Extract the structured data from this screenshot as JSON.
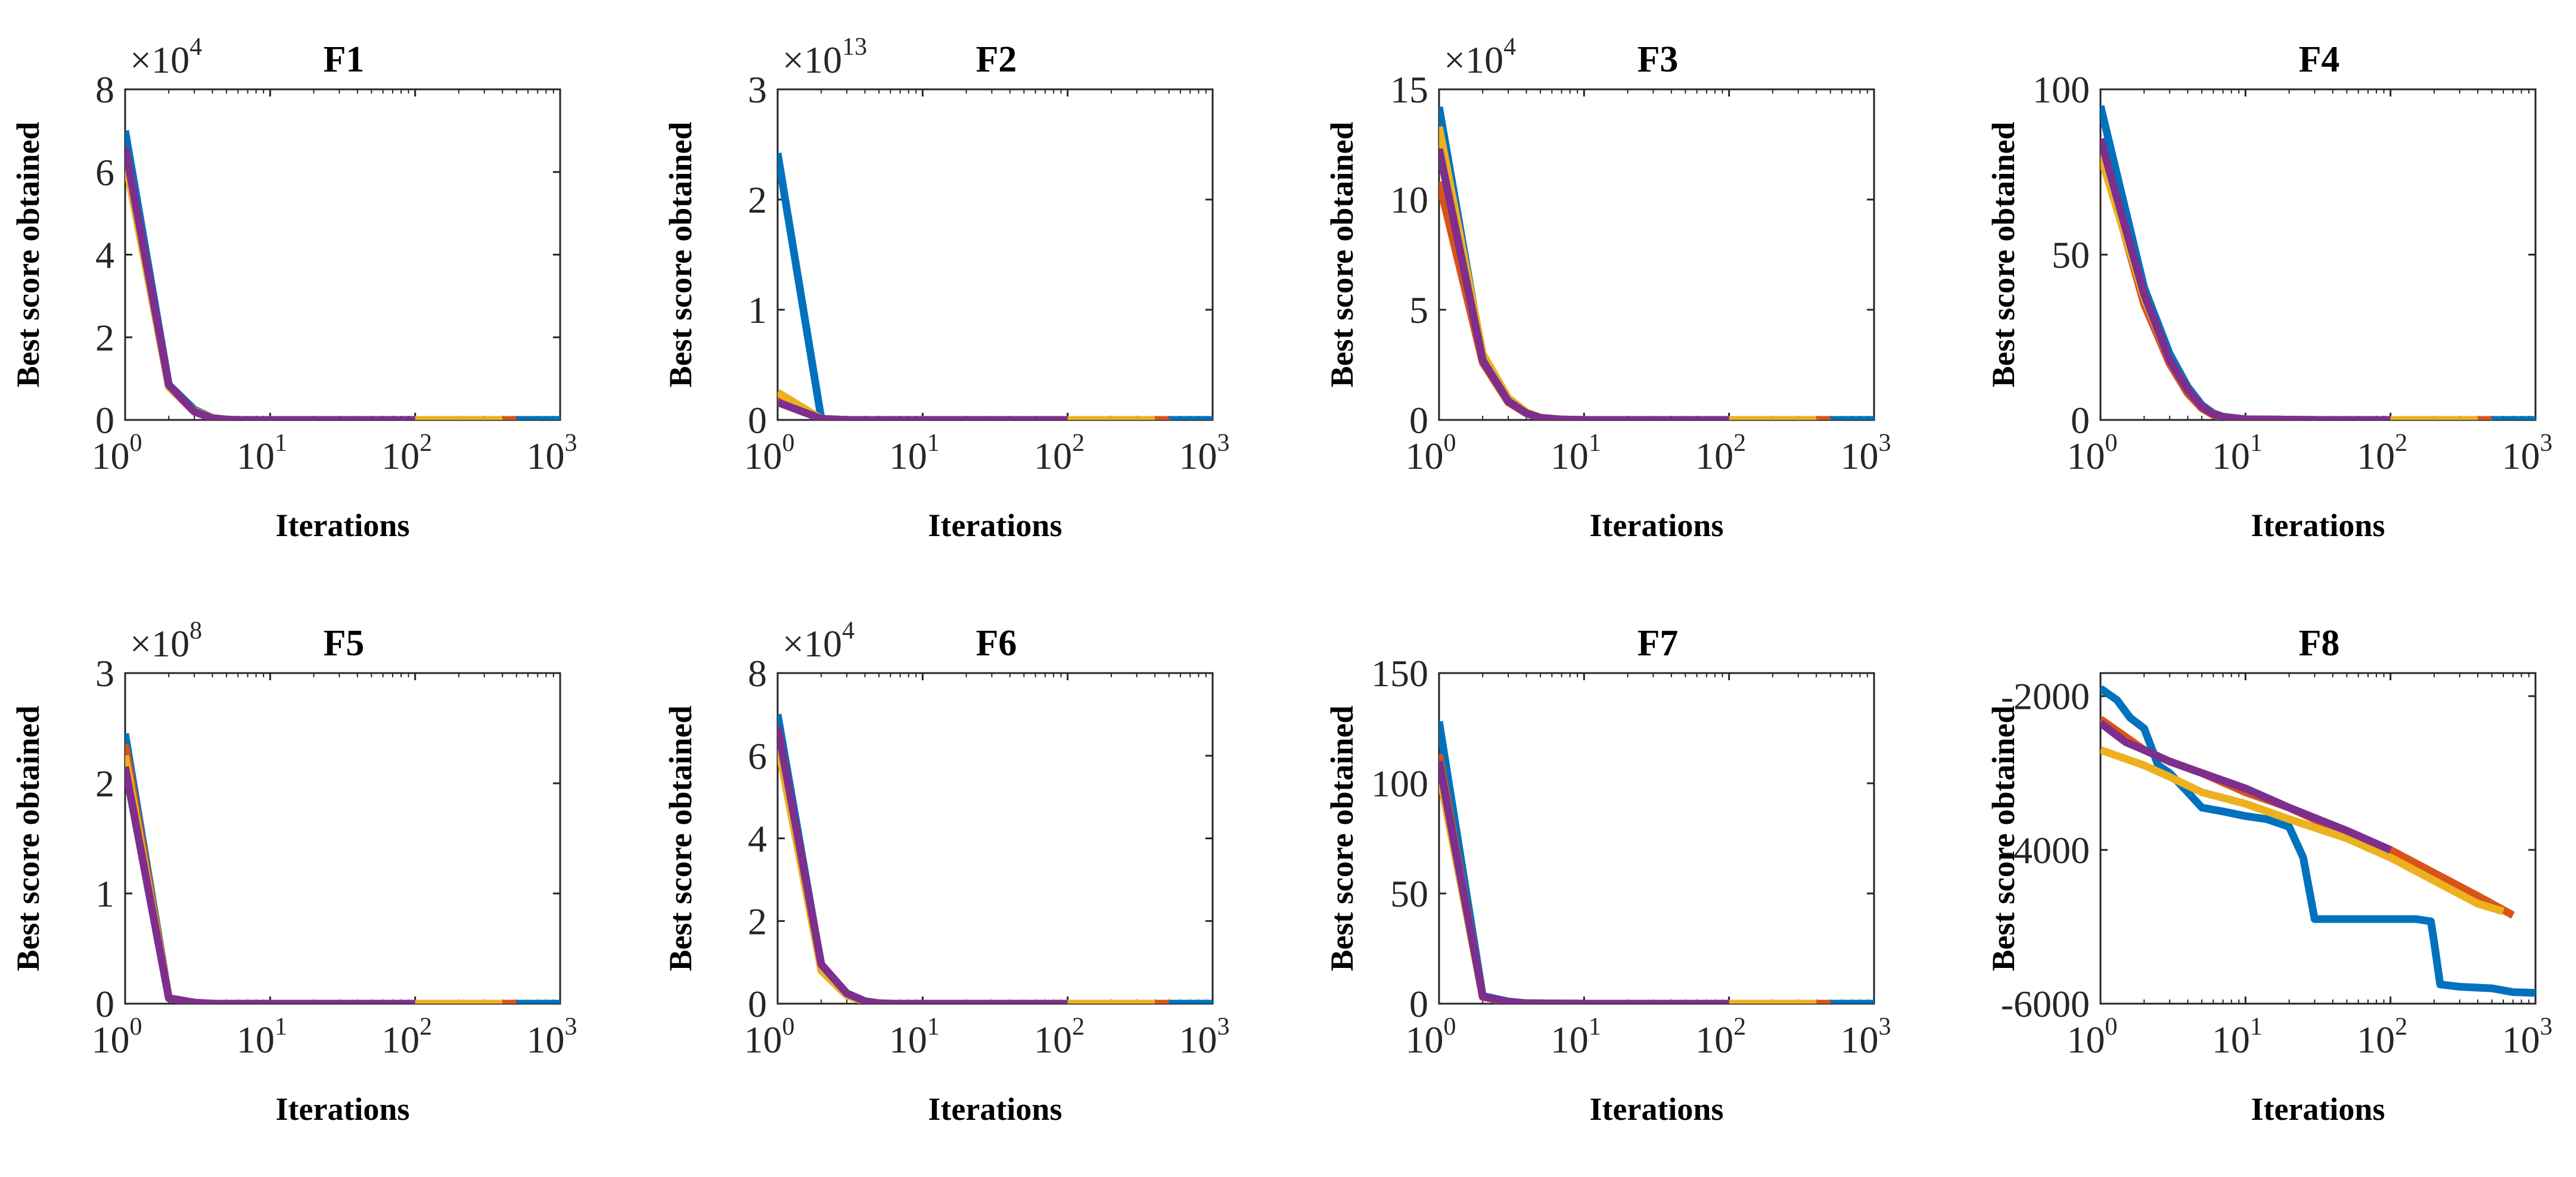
{
  "colors": [
    "#0072BD",
    "#D95319",
    "#EDB120",
    "#7E2F8E"
  ],
  "chart_data": [
    {
      "type": "line",
      "title": "F1",
      "xlabel": "Iterations",
      "ylabel": "Best score obtained",
      "xscale": "log",
      "xlim": [
        1,
        1000
      ],
      "ylim": [
        0,
        8
      ],
      "multiplier": "×10",
      "multiplier_exp": "4",
      "xticks": [
        1,
        10,
        100,
        1000
      ],
      "xtick_base": "10",
      "xtick_exps": [
        "0",
        "1",
        "2",
        "3"
      ],
      "yticks": [
        0,
        2,
        4,
        6,
        8
      ],
      "ytick_labels": [
        "0",
        "2",
        "4",
        "6",
        "8"
      ],
      "series": [
        {
          "x": [
            1,
            2,
            3,
            4,
            5,
            6,
            10,
            30,
            100,
            500,
            1000
          ],
          "y": [
            7.0,
            0.85,
            0.25,
            0.05,
            0.01,
            0,
            0,
            0,
            0,
            0,
            0
          ]
        },
        {
          "x": [
            1,
            2,
            3,
            4,
            5,
            6,
            10,
            30,
            100,
            500
          ],
          "y": [
            6.6,
            0.8,
            0.2,
            0.04,
            0.01,
            0,
            0,
            0,
            0,
            0
          ]
        },
        {
          "x": [
            1,
            2,
            3,
            4,
            5,
            6,
            10,
            30,
            100,
            400
          ],
          "y": [
            6.3,
            0.8,
            0.22,
            0.05,
            0.01,
            0,
            0,
            0,
            0,
            0
          ]
        },
        {
          "x": [
            1,
            2,
            3,
            4,
            5,
            6,
            10,
            30,
            100
          ],
          "y": [
            6.6,
            0.85,
            0.2,
            0.04,
            0.01,
            0,
            0,
            0,
            0
          ]
        }
      ]
    },
    {
      "type": "line",
      "title": "F2",
      "xlabel": "Iterations",
      "ylabel": "Best score obtained",
      "xscale": "log",
      "xlim": [
        1,
        1000
      ],
      "ylim": [
        0,
        3
      ],
      "multiplier": "×10",
      "multiplier_exp": "13",
      "xticks": [
        1,
        10,
        100,
        1000
      ],
      "xtick_base": "10",
      "xtick_exps": [
        "0",
        "1",
        "2",
        "3"
      ],
      "yticks": [
        0,
        1,
        2,
        3
      ],
      "ytick_labels": [
        "0",
        "1",
        "2",
        "3"
      ],
      "series": [
        {
          "x": [
            1,
            2,
            3,
            10,
            100,
            500,
            1000
          ],
          "y": [
            2.42,
            0.01,
            0,
            0,
            0,
            0,
            0
          ]
        },
        {
          "x": [
            1,
            2,
            3,
            10,
            100,
            500
          ],
          "y": [
            0.2,
            0.01,
            0,
            0,
            0,
            0
          ]
        },
        {
          "x": [
            1,
            2,
            3,
            10,
            100,
            400
          ],
          "y": [
            0.25,
            0.01,
            0,
            0,
            0,
            0
          ]
        },
        {
          "x": [
            1,
            2,
            3,
            10,
            100
          ],
          "y": [
            0.16,
            0.01,
            0,
            0,
            0
          ]
        }
      ]
    },
    {
      "type": "line",
      "title": "F3",
      "xlabel": "Iterations",
      "ylabel": "Best score obtained",
      "xscale": "log",
      "xlim": [
        1,
        1000
      ],
      "ylim": [
        0,
        15
      ],
      "multiplier": "×10",
      "multiplier_exp": "4",
      "xticks": [
        1,
        10,
        100,
        1000
      ],
      "xtick_base": "10",
      "xtick_exps": [
        "0",
        "1",
        "2",
        "3"
      ],
      "yticks": [
        0,
        5,
        10,
        15
      ],
      "ytick_labels": [
        "0",
        "5",
        "10",
        "15"
      ],
      "series": [
        {
          "x": [
            1,
            2,
            3,
            4,
            5,
            7,
            10,
            30,
            100,
            500,
            1000
          ],
          "y": [
            14.2,
            2.8,
            0.9,
            0.35,
            0.1,
            0.02,
            0,
            0,
            0,
            0,
            0
          ]
        },
        {
          "x": [
            1,
            2,
            3,
            4,
            5,
            7,
            10,
            30,
            100,
            500
          ],
          "y": [
            10.8,
            2.6,
            0.8,
            0.3,
            0.1,
            0.02,
            0,
            0,
            0,
            0
          ]
        },
        {
          "x": [
            1,
            2,
            3,
            4,
            5,
            7,
            10,
            30,
            100,
            400
          ],
          "y": [
            13.3,
            3.0,
            1.0,
            0.35,
            0.1,
            0.02,
            0,
            0,
            0,
            0
          ]
        },
        {
          "x": [
            1,
            2,
            3,
            4,
            5,
            7,
            10,
            30,
            100
          ],
          "y": [
            12.3,
            2.7,
            0.85,
            0.3,
            0.1,
            0.02,
            0,
            0,
            0
          ]
        }
      ]
    },
    {
      "type": "line",
      "title": "F4",
      "xlabel": "Iterations",
      "ylabel": "Best score obtained",
      "xscale": "log",
      "xlim": [
        1,
        1000
      ],
      "ylim": [
        0,
        100
      ],
      "multiplier": "",
      "multiplier_exp": "",
      "xticks": [
        1,
        10,
        100,
        1000
      ],
      "xtick_base": "10",
      "xtick_exps": [
        "0",
        "1",
        "2",
        "3"
      ],
      "yticks": [
        0,
        50,
        100
      ],
      "ytick_labels": [
        "0",
        "50",
        "100"
      ],
      "series": [
        {
          "x": [
            1,
            2,
            3,
            4,
            5,
            6,
            7,
            10,
            30,
            100,
            500,
            1000
          ],
          "y": [
            95,
            40,
            20,
            10,
            4.5,
            2,
            1,
            0.2,
            0,
            0,
            0,
            0
          ]
        },
        {
          "x": [
            1,
            2,
            3,
            4,
            5,
            6,
            7,
            10,
            30,
            100,
            500
          ],
          "y": [
            82,
            35,
            17,
            8,
            3.5,
            1.5,
            0.8,
            0.2,
            0,
            0,
            0
          ]
        },
        {
          "x": [
            1,
            2,
            3,
            4,
            5,
            6,
            7,
            10,
            30,
            100,
            400
          ],
          "y": [
            80,
            37,
            18,
            9,
            4,
            1.8,
            0.9,
            0.2,
            0,
            0,
            0
          ]
        },
        {
          "x": [
            1,
            2,
            3,
            4,
            5,
            6,
            7,
            10,
            30,
            100
          ],
          "y": [
            85,
            38,
            18,
            9,
            4,
            1.8,
            0.9,
            0.2,
            0,
            0
          ]
        }
      ]
    },
    {
      "type": "line",
      "title": "F5",
      "xlabel": "Iterations",
      "ylabel": "Best score obtained",
      "xscale": "log",
      "xlim": [
        1,
        1000
      ],
      "ylim": [
        0,
        3
      ],
      "multiplier": "×10",
      "multiplier_exp": "8",
      "xticks": [
        1,
        10,
        100,
        1000
      ],
      "xtick_base": "10",
      "xtick_exps": [
        "0",
        "1",
        "2",
        "3"
      ],
      "yticks": [
        0,
        1,
        2,
        3
      ],
      "ytick_labels": [
        "0",
        "1",
        "2",
        "3"
      ],
      "series": [
        {
          "x": [
            1,
            2,
            3,
            4,
            10,
            100,
            500,
            1000
          ],
          "y": [
            2.45,
            0.05,
            0.01,
            0,
            0,
            0,
            0,
            0
          ]
        },
        {
          "x": [
            1,
            2,
            3,
            4,
            10,
            100,
            500
          ],
          "y": [
            2.35,
            0.05,
            0.01,
            0,
            0,
            0,
            0
          ]
        },
        {
          "x": [
            1,
            2,
            3,
            4,
            10,
            100,
            400
          ],
          "y": [
            2.25,
            0.05,
            0.01,
            0,
            0,
            0,
            0
          ]
        },
        {
          "x": [
            1,
            2,
            3,
            4,
            10,
            100
          ],
          "y": [
            2.15,
            0.05,
            0.01,
            0,
            0,
            0
          ]
        }
      ]
    },
    {
      "type": "line",
      "title": "F6",
      "xlabel": "Iterations",
      "ylabel": "Best score obtained",
      "xscale": "log",
      "xlim": [
        1,
        1000
      ],
      "ylim": [
        0,
        8
      ],
      "multiplier": "×10",
      "multiplier_exp": "4",
      "xticks": [
        1,
        10,
        100,
        1000
      ],
      "xtick_base": "10",
      "xtick_exps": [
        "0",
        "1",
        "2",
        "3"
      ],
      "yticks": [
        0,
        2,
        4,
        6,
        8
      ],
      "ytick_labels": [
        "0",
        "2",
        "4",
        "6",
        "8"
      ],
      "series": [
        {
          "x": [
            1,
            2,
            3,
            4,
            5,
            6,
            10,
            30,
            100,
            500,
            1000
          ],
          "y": [
            7.0,
            0.9,
            0.25,
            0.06,
            0.01,
            0,
            0,
            0,
            0,
            0,
            0
          ]
        },
        {
          "x": [
            1,
            2,
            3,
            4,
            5,
            6,
            10,
            30,
            100,
            500
          ],
          "y": [
            6.6,
            0.85,
            0.22,
            0.05,
            0.01,
            0,
            0,
            0,
            0,
            0
          ]
        },
        {
          "x": [
            1,
            2,
            3,
            4,
            5,
            6,
            10,
            30,
            100,
            400
          ],
          "y": [
            6.3,
            0.8,
            0.2,
            0.05,
            0.01,
            0,
            0,
            0,
            0,
            0
          ]
        },
        {
          "x": [
            1,
            2,
            3,
            4,
            5,
            6,
            10,
            30,
            100
          ],
          "y": [
            6.7,
            0.95,
            0.25,
            0.06,
            0.01,
            0,
            0,
            0,
            0
          ]
        }
      ]
    },
    {
      "type": "line",
      "title": "F7",
      "xlabel": "Iterations",
      "ylabel": "Best score obtained",
      "xscale": "log",
      "xlim": [
        1,
        1000
      ],
      "ylim": [
        0,
        150
      ],
      "multiplier": "",
      "multiplier_exp": "",
      "xticks": [
        1,
        10,
        100,
        1000
      ],
      "xtick_base": "10",
      "xtick_exps": [
        "0",
        "1",
        "2",
        "3"
      ],
      "yticks": [
        0,
        50,
        100,
        150
      ],
      "ytick_labels": [
        "0",
        "50",
        "100",
        "150"
      ],
      "series": [
        {
          "x": [
            1,
            2,
            3,
            4,
            10,
            100,
            500,
            1000
          ],
          "y": [
            128,
            3.5,
            1,
            0.2,
            0,
            0,
            0,
            0
          ]
        },
        {
          "x": [
            1,
            2,
            3,
            4,
            10,
            100,
            500
          ],
          "y": [
            113,
            3,
            0.8,
            0.2,
            0,
            0,
            0
          ]
        },
        {
          "x": [
            1,
            2,
            3,
            4,
            10,
            100,
            400
          ],
          "y": [
            105,
            3,
            0.8,
            0.2,
            0,
            0,
            0
          ]
        },
        {
          "x": [
            1,
            2,
            3,
            4,
            10,
            100
          ],
          "y": [
            110,
            3.2,
            0.9,
            0.2,
            0,
            0
          ]
        }
      ]
    },
    {
      "type": "line",
      "title": "F8",
      "xlabel": "Iterations",
      "ylabel": "Best score obtained",
      "xscale": "log",
      "xlim": [
        1,
        1000
      ],
      "ylim": [
        -6000,
        -1700
      ],
      "multiplier": "",
      "multiplier_exp": "",
      "xticks": [
        1,
        10,
        100,
        1000
      ],
      "xtick_base": "10",
      "xtick_exps": [
        "0",
        "1",
        "2",
        "3"
      ],
      "yticks": [
        -6000,
        -4000,
        -2000
      ],
      "ytick_labels": [
        "-6000",
        "-4000",
        "-2000"
      ],
      "series": [
        {
          "x": [
            1,
            1.3,
            1.6,
            2,
            2.5,
            3,
            4,
            5,
            7,
            10,
            14,
            20,
            25,
            30,
            40,
            60,
            100,
            150,
            190,
            200,
            220,
            300,
            500,
            700,
            1000
          ],
          "y": [
            -1900,
            -2050,
            -2280,
            -2420,
            -2900,
            -3000,
            -3250,
            -3450,
            -3500,
            -3560,
            -3600,
            -3700,
            -4100,
            -4900,
            -4900,
            -4900,
            -4900,
            -4900,
            -4930,
            -5200,
            -5750,
            -5780,
            -5800,
            -5850,
            -5860
          ]
        },
        {
          "x": [
            1,
            2,
            3,
            5,
            10,
            20,
            50,
            100,
            200,
            400,
            700
          ],
          "y": [
            -2300,
            -2700,
            -2850,
            -3000,
            -3250,
            -3450,
            -3800,
            -4000,
            -4300,
            -4600,
            -4850
          ]
        },
        {
          "x": [
            1,
            2,
            3,
            5,
            10,
            20,
            50,
            100,
            200,
            400,
            600
          ],
          "y": [
            -2700,
            -2900,
            -3050,
            -3250,
            -3400,
            -3600,
            -3850,
            -4100,
            -4400,
            -4700,
            -4800
          ]
        },
        {
          "x": [
            1,
            1.5,
            2,
            3,
            5,
            10,
            20,
            50,
            100
          ],
          "y": [
            -2350,
            -2600,
            -2700,
            -2850,
            -3000,
            -3200,
            -3450,
            -3750,
            -4000
          ]
        }
      ]
    }
  ]
}
